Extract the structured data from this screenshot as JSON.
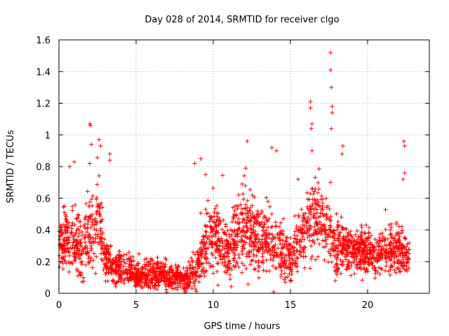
{
  "chart_data": {
    "type": "scatter",
    "title": "Day 028 of 2014, SRMTID for receiver clgo",
    "xlabel": "GPS time / hours",
    "ylabel": "SRMTID / TECUs",
    "xlim": [
      0,
      24
    ],
    "ylim": [
      0,
      1.6
    ],
    "xticks": [
      0,
      5,
      10,
      15,
      20
    ],
    "yticks": [
      0,
      0.2,
      0.4,
      0.6,
      0.8,
      1,
      1.2,
      1.4,
      1.6
    ],
    "xtick_labels": [
      "0",
      "5",
      "10",
      "15",
      "20"
    ],
    "ytick_labels": [
      "0",
      "0.2",
      "0.4",
      "0.6",
      "0.8",
      "1",
      "1.2",
      "1.4",
      "1.6"
    ],
    "grid": true,
    "marker": "+",
    "series_color": "#ff0000",
    "point_count": 2600,
    "x_range_data": [
      0,
      22.7
    ],
    "envelope": {
      "x": [
        0,
        0.5,
        1.0,
        1.5,
        2.0,
        2.5,
        3.0,
        3.5,
        4.0,
        4.5,
        5.0,
        5.5,
        6.0,
        6.5,
        7.0,
        7.5,
        8.0,
        8.5,
        9.0,
        9.5,
        10.0,
        10.5,
        11.0,
        11.5,
        12.0,
        12.5,
        13.0,
        13.5,
        14.0,
        14.5,
        15.0,
        15.5,
        16.0,
        16.5,
        17.0,
        17.5,
        18.0,
        18.5,
        19.0,
        19.5,
        20.0,
        20.5,
        21.0,
        21.5,
        22.0,
        22.5,
        22.7
      ],
      "mean": [
        0.32,
        0.34,
        0.32,
        0.28,
        0.38,
        0.45,
        0.22,
        0.16,
        0.16,
        0.15,
        0.11,
        0.11,
        0.12,
        0.12,
        0.1,
        0.1,
        0.08,
        0.1,
        0.15,
        0.33,
        0.38,
        0.3,
        0.25,
        0.35,
        0.42,
        0.38,
        0.35,
        0.35,
        0.3,
        0.25,
        0.22,
        0.3,
        0.4,
        0.48,
        0.45,
        0.4,
        0.3,
        0.28,
        0.26,
        0.26,
        0.26,
        0.25,
        0.26,
        0.28,
        0.27,
        0.24,
        0.22
      ],
      "spread": [
        0.1,
        0.12,
        0.14,
        0.14,
        0.16,
        0.16,
        0.1,
        0.07,
        0.07,
        0.06,
        0.05,
        0.05,
        0.06,
        0.06,
        0.05,
        0.05,
        0.04,
        0.06,
        0.08,
        0.16,
        0.16,
        0.14,
        0.13,
        0.15,
        0.16,
        0.15,
        0.14,
        0.14,
        0.13,
        0.11,
        0.1,
        0.12,
        0.14,
        0.15,
        0.14,
        0.14,
        0.12,
        0.1,
        0.09,
        0.09,
        0.09,
        0.09,
        0.09,
        0.1,
        0.1,
        0.09,
        0.08
      ]
    },
    "outliers": [
      {
        "x": 2.0,
        "y": 1.07
      },
      {
        "x": 2.05,
        "y": 1.06
      },
      {
        "x": 2.1,
        "y": 0.94
      },
      {
        "x": 2.0,
        "y": 0.82
      },
      {
        "x": 2.6,
        "y": 0.97
      },
      {
        "x": 2.7,
        "y": 0.93
      },
      {
        "x": 3.3,
        "y": 0.88
      },
      {
        "x": 3.3,
        "y": 0.84
      },
      {
        "x": 0.7,
        "y": 0.8
      },
      {
        "x": 1.0,
        "y": 0.83
      },
      {
        "x": 8.8,
        "y": 0.82
      },
      {
        "x": 9.2,
        "y": 0.85
      },
      {
        "x": 12.2,
        "y": 0.96
      },
      {
        "x": 12.1,
        "y": 0.79
      },
      {
        "x": 13.8,
        "y": 0.92
      },
      {
        "x": 14.1,
        "y": 0.9
      },
      {
        "x": 16.3,
        "y": 1.21
      },
      {
        "x": 16.3,
        "y": 1.17
      },
      {
        "x": 16.4,
        "y": 1.07
      },
      {
        "x": 16.35,
        "y": 1.04
      },
      {
        "x": 16.4,
        "y": 0.9
      },
      {
        "x": 17.6,
        "y": 1.52
      },
      {
        "x": 17.6,
        "y": 1.41
      },
      {
        "x": 17.65,
        "y": 1.3
      },
      {
        "x": 17.7,
        "y": 1.18
      },
      {
        "x": 17.7,
        "y": 1.14
      },
      {
        "x": 17.65,
        "y": 1.04
      },
      {
        "x": 18.4,
        "y": 0.93
      },
      {
        "x": 18.35,
        "y": 0.88
      },
      {
        "x": 22.35,
        "y": 0.96
      },
      {
        "x": 22.4,
        "y": 0.93
      },
      {
        "x": 22.4,
        "y": 0.76
      },
      {
        "x": 22.3,
        "y": 0.72
      },
      {
        "x": 17.6,
        "y": 0.7
      },
      {
        "x": 15.5,
        "y": 0.72
      },
      {
        "x": 9.5,
        "y": 0.75
      }
    ]
  }
}
